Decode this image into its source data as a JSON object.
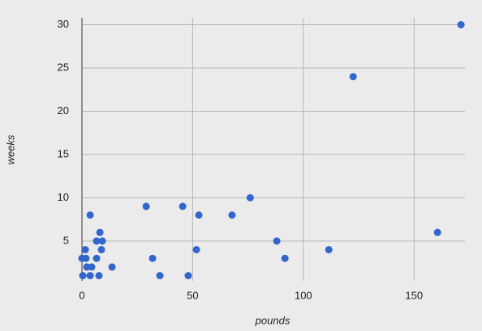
{
  "chart_data": {
    "type": "scatter",
    "x_label": "pounds",
    "y_label": "weeks",
    "color": "#3366cc",
    "xlim": [
      0,
      173
    ],
    "ylim": [
      0.4,
      30.8
    ],
    "xticks": [
      0,
      50,
      100,
      150
    ],
    "yticks": [
      5,
      10,
      15,
      20,
      25,
      30
    ],
    "grid": true,
    "x": [
      171.2,
      122.5,
      160.6,
      111.5,
      88,
      91.7,
      76,
      67.8,
      52.8,
      45.5,
      29,
      51.7,
      48,
      35.2,
      31.9,
      13.6,
      3.7,
      8.1,
      9.2,
      6.6,
      8.8,
      6.6,
      7.7,
      4.4,
      3.7,
      2.2,
      1.5,
      0,
      1.8,
      0.4
    ],
    "values": [
      30,
      24,
      6,
      4,
      5,
      3,
      10,
      8,
      8,
      9,
      9,
      4,
      1,
      1,
      3,
      2,
      8,
      6,
      5,
      5,
      4,
      3,
      1,
      2,
      1,
      2,
      4,
      3,
      3,
      1
    ]
  }
}
